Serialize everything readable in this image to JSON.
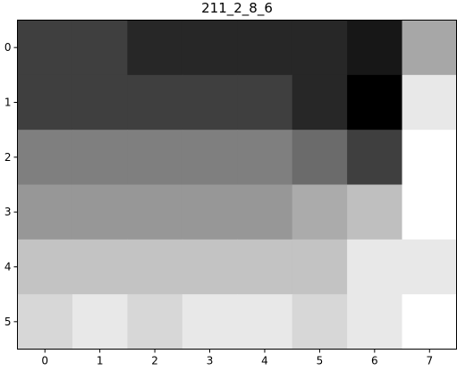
{
  "chart_data": {
    "type": "heatmap",
    "title": "211_2_8_6",
    "xlabel": "",
    "ylabel": "",
    "x_ticks": [
      "0",
      "1",
      "2",
      "3",
      "4",
      "5",
      "6",
      "7"
    ],
    "y_ticks": [
      "0",
      "1",
      "2",
      "3",
      "4",
      "5"
    ],
    "colormap": "gray",
    "grid": false,
    "values": [
      [
        63,
        63,
        39,
        39,
        39,
        39,
        23,
        167
      ],
      [
        63,
        63,
        63,
        63,
        63,
        39,
        0,
        232
      ],
      [
        127,
        127,
        127,
        127,
        127,
        107,
        63,
        255
      ],
      [
        151,
        151,
        151,
        151,
        151,
        171,
        191,
        255
      ],
      [
        195,
        195,
        195,
        195,
        195,
        195,
        232,
        232
      ],
      [
        215,
        232,
        215,
        232,
        232,
        215,
        232,
        255
      ]
    ]
  }
}
